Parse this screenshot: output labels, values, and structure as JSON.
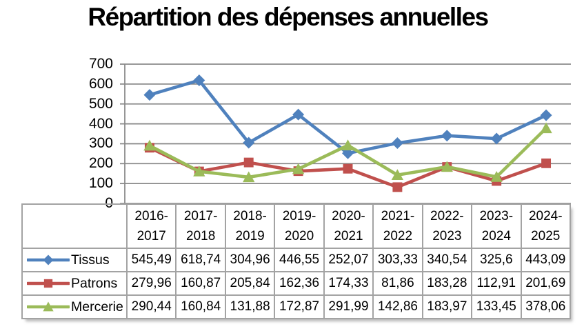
{
  "title": "Répartition des dépenses annuelles",
  "colors": {
    "series_tissus": "#4F81BD",
    "series_patrons": "#C0504D",
    "series_mercerie": "#9BBB59",
    "gridline": "#8A8A8A",
    "table_border": "#A3A3A3",
    "text": "#000000",
    "background": "#FFFFFF"
  },
  "chart_data": {
    "type": "line",
    "title": "Répartition des dépenses annuelles",
    "categories": [
      "2016-2017",
      "2017-2018",
      "2018-2019",
      "2019-2020",
      "2020-2021",
      "2021-2022",
      "2022-2023",
      "2023-2024",
      "2024-2025"
    ],
    "series": [
      {
        "name": "Tissus",
        "marker": "diamond",
        "color": "#4F81BD",
        "values": [
          545.49,
          618.74,
          304.96,
          446.55,
          252.07,
          303.33,
          340.54,
          325.6,
          443.09
        ]
      },
      {
        "name": "Patrons",
        "marker": "square",
        "color": "#C0504D",
        "values": [
          279.96,
          160.87,
          205.84,
          162.36,
          174.33,
          81.86,
          183.28,
          112.91,
          201.69
        ]
      },
      {
        "name": "Mercerie",
        "marker": "triangle",
        "color": "#9BBB59",
        "values": [
          290.44,
          160.84,
          131.88,
          172.87,
          291.99,
          142.86,
          183.97,
          133.45,
          378.06
        ]
      }
    ],
    "xlabel": "",
    "ylabel": "",
    "ylim": [
      0,
      700
    ],
    "y_ticks": [
      0,
      100,
      200,
      300,
      400,
      500,
      600,
      700
    ],
    "grid": true,
    "legend_position": "data-table-below-axis",
    "decimal_separator": ","
  }
}
